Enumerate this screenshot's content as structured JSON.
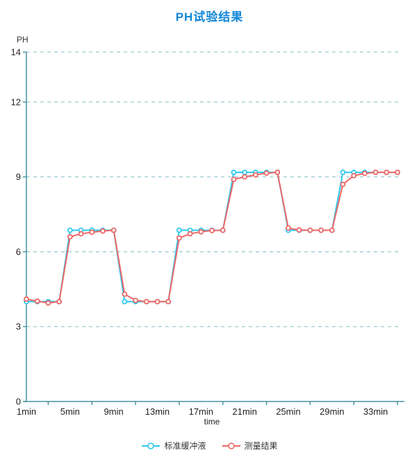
{
  "page": {
    "title": "PH试验结果"
  },
  "axes": {
    "y_name": "PH",
    "x_name": "time"
  },
  "legend": {
    "items": [
      {
        "label": "标准缓冲液",
        "color": "#2ec7ee"
      },
      {
        "label": "测量结果",
        "color": "#ee6666"
      }
    ]
  },
  "colors": {
    "title": "#1287d9",
    "axis_line": "#4493a1",
    "grid_line": "#9ccad2",
    "tick_label": "#222222",
    "legend_text": "#333333",
    "series_standard": "#2ec7ee",
    "series_measured": "#ee6666",
    "marker_fill": "#ffffff"
  },
  "chart_data": {
    "type": "line",
    "title": "PH试验结果",
    "xlabel": "time",
    "ylabel": "PH",
    "x_unit": "min",
    "ylim": [
      0,
      14
    ],
    "y_ticks": [
      0,
      3,
      6,
      9,
      12,
      14
    ],
    "grid": {
      "horizontal_dashed": true,
      "vertical": false
    },
    "legend_position": "bottom",
    "x": [
      1,
      2,
      3,
      4,
      5,
      6,
      7,
      8,
      9,
      10,
      11,
      12,
      13,
      14,
      15,
      16,
      17,
      18,
      19,
      20,
      21,
      22,
      23,
      24,
      25,
      26,
      27,
      28,
      29,
      30,
      31,
      32,
      33,
      34,
      35
    ],
    "x_label_positions": [
      1,
      5,
      9,
      13,
      17,
      21,
      25,
      29,
      33
    ],
    "x_axis_labels": [
      "1min",
      "5min",
      "9min",
      "13min",
      "17min",
      "21min",
      "25min",
      "29min",
      "33min"
    ],
    "series": [
      {
        "name": "标准缓冲液",
        "color": "#2ec7ee",
        "values": [
          4,
          4,
          4,
          4,
          6.86,
          6.86,
          6.86,
          6.86,
          6.86,
          4,
          4,
          4,
          4,
          4,
          6.86,
          6.86,
          6.86,
          6.86,
          6.86,
          9.18,
          9.18,
          9.18,
          9.18,
          9.18,
          6.86,
          6.86,
          6.86,
          6.86,
          6.86,
          9.18,
          9.18,
          9.18,
          9.18,
          9.18,
          9.18
        ]
      },
      {
        "name": "测量结果",
        "color": "#ee6666",
        "values": [
          4.1,
          4.02,
          3.95,
          4.0,
          6.6,
          6.72,
          6.78,
          6.83,
          6.86,
          4.3,
          4.05,
          4.0,
          4.0,
          4.0,
          6.55,
          6.72,
          6.8,
          6.85,
          6.86,
          8.9,
          9.0,
          9.08,
          9.15,
          9.18,
          6.95,
          6.87,
          6.86,
          6.86,
          6.86,
          8.7,
          9.05,
          9.14,
          9.18,
          9.18,
          9.18
        ]
      }
    ]
  }
}
